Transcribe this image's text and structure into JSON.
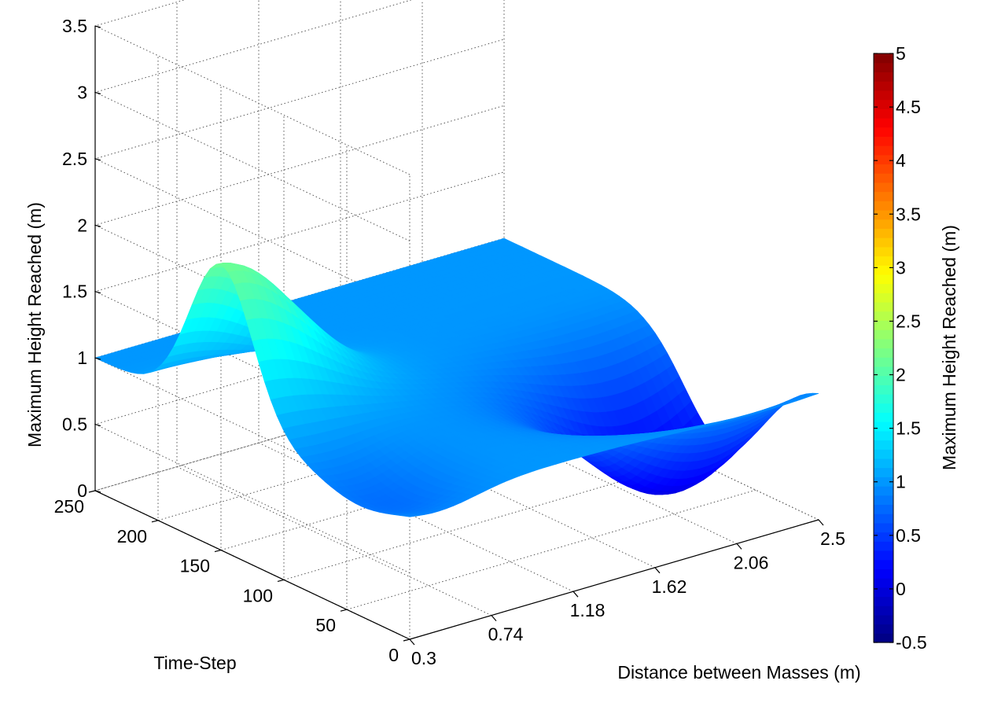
{
  "chart_data": {
    "type": "surface",
    "xlabel": "Distance between Masses (m)",
    "ylabel": "Time-Step",
    "zlabel": "Maximum Height Reached (m)",
    "colorbar_label": "Maximum Height Reached (m)",
    "colormap": "jet",
    "xlim": [
      0.3,
      2.5
    ],
    "ylim": [
      0,
      250
    ],
    "zlim": [
      0,
      3.5
    ],
    "clim": [
      -0.5,
      5
    ],
    "x_ticks": [
      "0.3",
      "0.74",
      "1.18",
      "1.62",
      "2.06",
      "2.5"
    ],
    "y_ticks": [
      "0",
      "50",
      "100",
      "150",
      "200",
      "250"
    ],
    "z_ticks": [
      "0",
      "0.5",
      "1",
      "1.5",
      "2",
      "2.5",
      "3",
      "3.5"
    ],
    "colorbar_ticks": [
      "-0.5",
      "0",
      "0.5",
      "1",
      "1.5",
      "2",
      "2.5",
      "3",
      "3.5",
      "4",
      "4.5",
      "5"
    ],
    "grid": true,
    "surface_features": {
      "baseline_height": 1.0,
      "peak_height": 2.15,
      "peak_location": {
        "distance": 0.3,
        "time_step": 150
      },
      "trough_height": 0.0,
      "trough_location": {
        "distance": 2.2,
        "time_step": 75
      }
    }
  }
}
